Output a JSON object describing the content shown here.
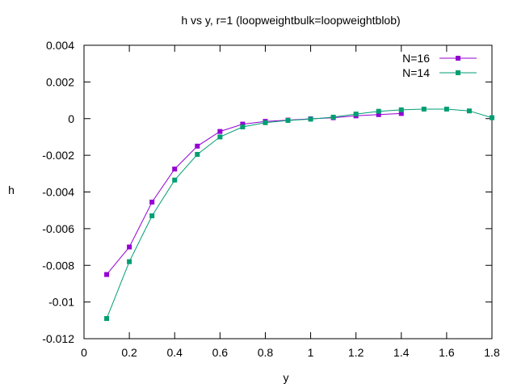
{
  "chart_data": {
    "type": "line",
    "title": "h vs y, r=1 (loopweightbulk=loopweightblob)",
    "xlabel": "y",
    "ylabel": "h",
    "xlim": [
      0,
      1.8
    ],
    "ylim": [
      -0.012,
      0.004
    ],
    "xticks": [
      "0",
      "0.2",
      "0.4",
      "0.6",
      "0.8",
      "1",
      "1.2",
      "1.4",
      "1.6",
      "1.8"
    ],
    "yticks": [
      "0.004",
      "0.002",
      "0",
      "-0.002",
      "-0.004",
      "-0.006",
      "-0.008",
      "-0.01",
      "-0.012"
    ],
    "legend_position": "top-right",
    "grid": false,
    "series": [
      {
        "name": "N=16",
        "color": "#9400d3",
        "x": [
          0.1,
          0.2,
          0.3,
          0.4,
          0.5,
          0.6,
          0.7,
          0.8,
          0.9,
          1.0,
          1.1,
          1.2,
          1.3,
          1.4
        ],
        "y": [
          -0.0085,
          -0.007,
          -0.00455,
          -0.00275,
          -0.0015,
          -0.0007,
          -0.0003,
          -0.00015,
          -8e-05,
          -1e-05,
          5e-05,
          0.00015,
          0.00022,
          0.00028
        ]
      },
      {
        "name": "N=14",
        "color": "#009e73",
        "x": [
          0.1,
          0.2,
          0.3,
          0.4,
          0.5,
          0.6,
          0.7,
          0.8,
          0.9,
          1.0,
          1.1,
          1.2,
          1.3,
          1.4,
          1.5,
          1.6,
          1.7,
          1.8
        ],
        "y": [
          -0.0109,
          -0.0078,
          -0.0053,
          -0.00335,
          -0.00195,
          -0.001,
          -0.00045,
          -0.00022,
          -0.0001,
          -3e-05,
          8e-05,
          0.00025,
          0.0004,
          0.00048,
          0.00052,
          0.00052,
          0.00042,
          5e-05
        ]
      }
    ]
  }
}
